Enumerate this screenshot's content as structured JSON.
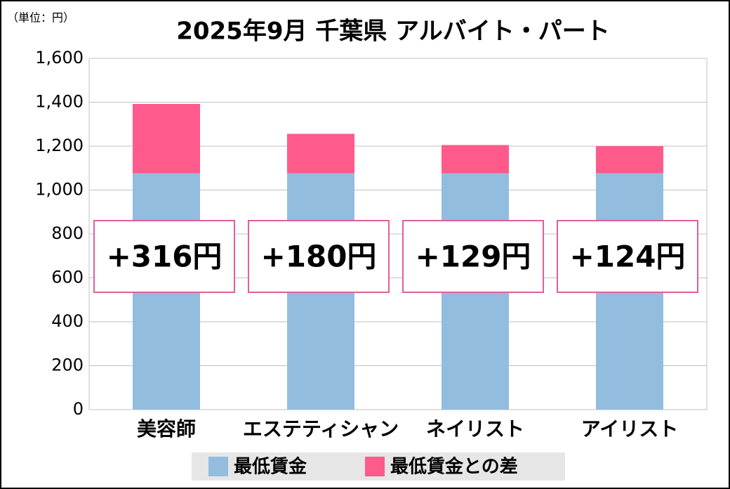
{
  "chart_data": {
    "type": "stacked_bar",
    "title": "2025年9月 千葉県 アルバイト・パート",
    "unit_label": "（単位：円）",
    "categories": [
      "美容師",
      "エステティシャン",
      "ネイリスト",
      "アイリスト"
    ],
    "series": [
      {
        "name": "最低賃金",
        "color": "#92bddf",
        "values": [
          1076,
          1076,
          1076,
          1076
        ]
      },
      {
        "name": "最低賃金との差",
        "color": "#ff5a8c",
        "values": [
          316,
          180,
          129,
          124
        ],
        "value_labels": [
          "+316円",
          "+180円",
          "+129円",
          "+124円"
        ]
      }
    ],
    "ylim": [
      0,
      1600
    ],
    "yticks": [
      0,
      200,
      400,
      600,
      800,
      {
        "value": 1000,
        "label": "1,000"
      },
      {
        "value": 1200,
        "label": "1,200"
      },
      {
        "value": 1400,
        "label": "1,400"
      },
      {
        "value": 1600,
        "label": "1,600"
      }
    ],
    "grid": true,
    "legend": "bottom"
  }
}
